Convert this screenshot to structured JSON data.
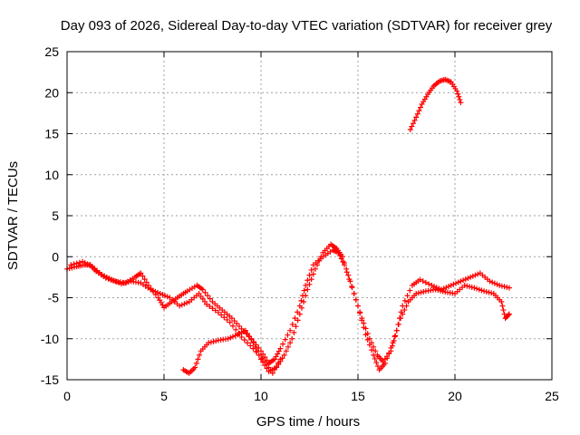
{
  "chart_data": {
    "type": "scatter",
    "title": "Day 093 of 2026, Sidereal Day-to-day VTEC variation (SDTVAR) for receiver grey",
    "xlabel": "GPS time / hours",
    "ylabel": "SDTVAR / TECUs",
    "xlim": [
      0,
      25
    ],
    "ylim": [
      -15,
      25
    ],
    "xticks": [
      0,
      5,
      10,
      15,
      20,
      25
    ],
    "yticks": [
      -15,
      -10,
      -5,
      0,
      5,
      10,
      15,
      20,
      25
    ],
    "grid": true,
    "marker": "+",
    "series": [
      {
        "name": "main-track",
        "color": "#ff0000",
        "points": [
          [
            0,
            -1.5
          ],
          [
            0.5,
            -1.2
          ],
          [
            0.9,
            -1.0
          ],
          [
            1.2,
            -1.0
          ],
          [
            1.5,
            -1.8
          ],
          [
            2.0,
            -2.6
          ],
          [
            2.5,
            -3.0
          ],
          [
            3.0,
            -3.2
          ],
          [
            3.5,
            -2.5
          ],
          [
            3.8,
            -2.0
          ],
          [
            4.2,
            -3.5
          ],
          [
            4.7,
            -5.0
          ],
          [
            5.0,
            -6.2
          ],
          [
            5.4,
            -5.5
          ],
          [
            5.8,
            -4.8
          ],
          [
            6.2,
            -4.2
          ],
          [
            6.7,
            -3.5
          ],
          [
            7.0,
            -4.0
          ],
          [
            7.5,
            -5.5
          ],
          [
            8.0,
            -6.5
          ],
          [
            8.5,
            -7.5
          ],
          [
            9.0,
            -8.8
          ],
          [
            9.5,
            -10.0
          ],
          [
            10.0,
            -11.5
          ],
          [
            10.4,
            -13.0
          ],
          [
            10.7,
            -12.5
          ],
          [
            11.0,
            -11.2
          ],
          [
            11.5,
            -9.0
          ],
          [
            12.0,
            -6.0
          ],
          [
            12.3,
            -3.5
          ],
          [
            12.7,
            -1.0
          ],
          [
            13.2,
            0.0
          ],
          [
            13.7,
            0.8
          ],
          [
            14.0,
            0.5
          ],
          [
            14.3,
            -1.0
          ],
          [
            14.8,
            -4.5
          ],
          [
            15.2,
            -7.5
          ],
          [
            15.6,
            -10.0
          ],
          [
            16.0,
            -12.0
          ],
          [
            16.3,
            -12.8
          ],
          [
            16.7,
            -11.5
          ],
          [
            17.0,
            -9.0
          ],
          [
            17.3,
            -6.0
          ],
          [
            17.8,
            -3.5
          ],
          [
            18.2,
            -2.8
          ],
          [
            18.8,
            -3.5
          ],
          [
            19.3,
            -4.0
          ],
          [
            19.8,
            -3.5
          ],
          [
            20.3,
            -3.0
          ],
          [
            20.8,
            -2.5
          ],
          [
            21.3,
            -2.0
          ],
          [
            21.8,
            -3.0
          ],
          [
            22.3,
            -3.5
          ],
          [
            22.8,
            -3.8
          ]
        ]
      },
      {
        "name": "secondary-track",
        "color": "#ff0000",
        "points": [
          [
            6.0,
            -13.8
          ],
          [
            6.3,
            -14.2
          ],
          [
            6.6,
            -13.5
          ],
          [
            6.9,
            -11.5
          ],
          [
            7.3,
            -10.5
          ],
          [
            7.8,
            -10.2
          ],
          [
            8.3,
            -10.0
          ],
          [
            8.8,
            -9.5
          ],
          [
            9.2,
            -9.0
          ],
          [
            9.6,
            -10.5
          ],
          [
            10.0,
            -12.5
          ],
          [
            10.4,
            -14.0
          ],
          [
            10.8,
            -13.5
          ],
          [
            11.2,
            -12.0
          ],
          [
            11.6,
            -10.0
          ],
          [
            12.0,
            -7.0
          ],
          [
            12.4,
            -4.0
          ],
          [
            12.8,
            -1.5
          ],
          [
            13.2,
            0.5
          ],
          [
            13.6,
            1.5
          ],
          [
            13.9,
            1.0
          ],
          [
            14.2,
            0.0
          ],
          [
            14.6,
            -3.0
          ],
          [
            15.0,
            -6.0
          ],
          [
            15.4,
            -9.5
          ],
          [
            15.8,
            -12.0
          ],
          [
            16.1,
            -13.8
          ],
          [
            16.4,
            -13.0
          ],
          [
            16.8,
            -10.5
          ],
          [
            17.2,
            -7.5
          ],
          [
            17.6,
            -5.5
          ],
          [
            18.0,
            -4.5
          ],
          [
            18.5,
            -4.2
          ],
          [
            19.0,
            -4.0
          ],
          [
            19.5,
            -4.3
          ],
          [
            20.0,
            -4.5
          ],
          [
            20.5,
            -3.5
          ],
          [
            21.0,
            -3.8
          ],
          [
            21.5,
            -4.2
          ],
          [
            22.0,
            -4.5
          ],
          [
            22.4,
            -5.5
          ],
          [
            22.6,
            -7.5
          ],
          [
            22.8,
            -7.0
          ]
        ]
      },
      {
        "name": "tertiary-track",
        "color": "#ff0000",
        "points": [
          [
            0.2,
            -1.0
          ],
          [
            0.8,
            -0.6
          ],
          [
            1.3,
            -1.2
          ],
          [
            1.8,
            -2.2
          ],
          [
            2.3,
            -2.8
          ],
          [
            2.8,
            -3.3
          ],
          [
            3.3,
            -3.0
          ],
          [
            3.8,
            -3.2
          ],
          [
            4.3,
            -4.0
          ],
          [
            4.8,
            -4.5
          ],
          [
            5.3,
            -5.0
          ],
          [
            5.8,
            -6.0
          ],
          [
            6.3,
            -5.5
          ],
          [
            6.8,
            -4.5
          ],
          [
            7.2,
            -5.8
          ],
          [
            7.8,
            -6.8
          ],
          [
            8.4,
            -8.0
          ],
          [
            9.0,
            -9.8
          ],
          [
            9.6,
            -11.2
          ],
          [
            10.2,
            -12.8
          ],
          [
            10.6,
            -14.2
          ],
          [
            11.0,
            -12.5
          ]
        ]
      },
      {
        "name": "upper-arc",
        "color": "#ff0000",
        "points": [
          [
            17.7,
            15.5
          ],
          [
            18.0,
            17.0
          ],
          [
            18.3,
            18.6
          ],
          [
            18.6,
            19.8
          ],
          [
            18.9,
            20.8
          ],
          [
            19.2,
            21.4
          ],
          [
            19.5,
            21.6
          ],
          [
            19.8,
            21.3
          ],
          [
            20.1,
            20.2
          ],
          [
            20.3,
            18.8
          ]
        ]
      }
    ]
  }
}
